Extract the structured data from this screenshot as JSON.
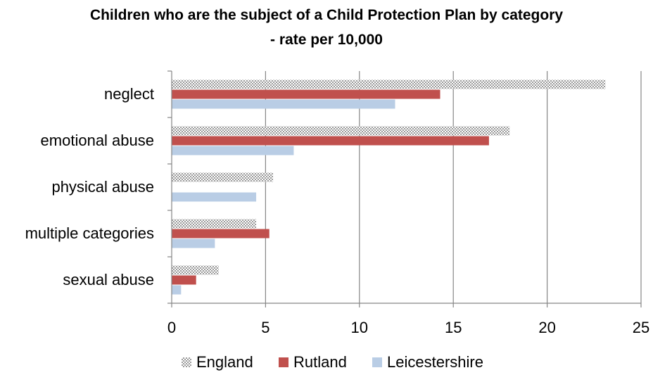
{
  "chart_data": {
    "type": "bar",
    "orientation": "horizontal",
    "title_lines": [
      "Children who are the subject of a Child Protection Plan by category",
      "- rate per 10,000"
    ],
    "categories": [
      "neglect",
      "emotional abuse",
      "physical abuse",
      "multiple categories",
      "sexual abuse"
    ],
    "series": [
      {
        "name": "England",
        "color": "#c8c8c8",
        "pattern": "checkered",
        "values": [
          23.1,
          18.0,
          5.4,
          4.5,
          2.5
        ]
      },
      {
        "name": "Rutland",
        "color": "#c0504d",
        "pattern": "solid",
        "values": [
          14.3,
          16.9,
          0,
          5.2,
          1.3
        ]
      },
      {
        "name": "Leicestershire",
        "color": "#b9cde5",
        "pattern": "solid",
        "values": [
          11.9,
          6.5,
          4.5,
          2.3,
          0.5
        ]
      }
    ],
    "xlim": [
      0,
      25
    ],
    "xticks": [
      0,
      5,
      10,
      15,
      20,
      25
    ],
    "grid": "vertical",
    "legend_position": "bottom"
  }
}
